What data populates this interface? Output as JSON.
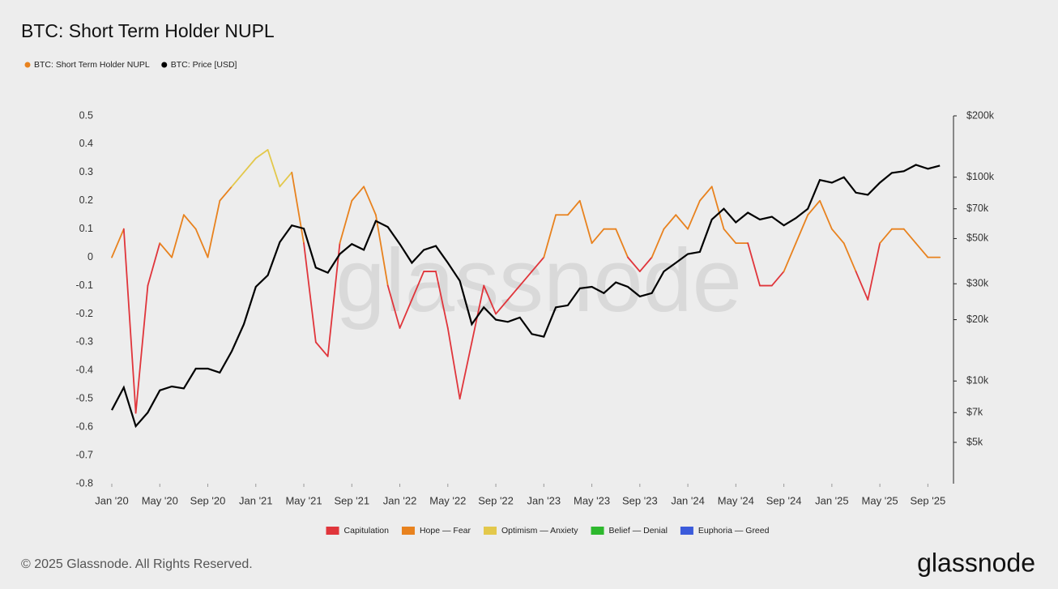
{
  "chart_data": {
    "type": "line",
    "title": "BTC: Short Term Holder NUPL",
    "watermark": "glassnode",
    "footer": "© 2025 Glassnode. All Rights Reserved.",
    "brand": "glassnode",
    "x": [
      "2020-01",
      "2020-02",
      "2020-03",
      "2020-04",
      "2020-05",
      "2020-06",
      "2020-07",
      "2020-08",
      "2020-09",
      "2020-10",
      "2020-11",
      "2020-12",
      "2021-01",
      "2021-02",
      "2021-03",
      "2021-04",
      "2021-05",
      "2021-06",
      "2021-07",
      "2021-08",
      "2021-09",
      "2021-10",
      "2021-11",
      "2021-12",
      "2022-01",
      "2022-02",
      "2022-03",
      "2022-04",
      "2022-05",
      "2022-06",
      "2022-07",
      "2022-08",
      "2022-09",
      "2022-10",
      "2022-11",
      "2022-12",
      "2023-01",
      "2023-02",
      "2023-03",
      "2023-04",
      "2023-05",
      "2023-06",
      "2023-07",
      "2023-08",
      "2023-09",
      "2023-10",
      "2023-11",
      "2023-12",
      "2024-01",
      "2024-02",
      "2024-03",
      "2024-04",
      "2024-05",
      "2024-06",
      "2024-07",
      "2024-08",
      "2024-09",
      "2024-10",
      "2024-11",
      "2024-12",
      "2025-01",
      "2025-02",
      "2025-03",
      "2025-04",
      "2025-05",
      "2025-06",
      "2025-07",
      "2025-08",
      "2025-09",
      "2025-10"
    ],
    "series": [
      {
        "name": "BTC: Short Term Holder NUPL",
        "color": "#e8821e",
        "axis": "y",
        "values": [
          0.0,
          0.1,
          -0.55,
          -0.1,
          0.05,
          0.0,
          0.15,
          0.1,
          0.0,
          0.2,
          0.25,
          0.3,
          0.35,
          0.38,
          0.25,
          0.3,
          0.05,
          -0.3,
          -0.35,
          0.05,
          0.2,
          0.25,
          0.15,
          -0.1,
          -0.25,
          -0.15,
          -0.05,
          -0.05,
          -0.25,
          -0.5,
          -0.3,
          -0.1,
          -0.2,
          -0.15,
          -0.1,
          -0.05,
          0.0,
          0.15,
          0.15,
          0.2,
          0.05,
          0.1,
          0.1,
          0.0,
          -0.05,
          0.0,
          0.1,
          0.15,
          0.1,
          0.2,
          0.25,
          0.1,
          0.05,
          0.05,
          -0.1,
          -0.1,
          -0.05,
          0.05,
          0.15,
          0.2,
          0.1,
          0.05,
          -0.05,
          -0.15,
          0.05,
          0.1,
          0.1,
          0.05,
          0.0,
          0.0
        ]
      },
      {
        "name": "BTC: Price [USD]",
        "color": "#000000",
        "axis": "y2",
        "values": [
          7200,
          9300,
          6000,
          7000,
          9000,
          9400,
          9200,
          11500,
          11500,
          11000,
          14000,
          19000,
          29000,
          33000,
          48000,
          58000,
          56000,
          36000,
          34000,
          42000,
          47000,
          44000,
          61000,
          57000,
          47000,
          38000,
          44000,
          46000,
          38000,
          31000,
          19000,
          23000,
          20000,
          19500,
          20500,
          17000,
          16500,
          23000,
          23500,
          28500,
          29000,
          27000,
          30500,
          29000,
          26000,
          27000,
          34500,
          38000,
          42000,
          43000,
          62000,
          70000,
          60000,
          67000,
          62000,
          64000,
          58000,
          63000,
          70000,
          97000,
          94000,
          100000,
          84000,
          82000,
          94000,
          105000,
          107000,
          115000,
          110000,
          114000
        ]
      }
    ],
    "zones": [
      {
        "name": "Capitulation",
        "color": "#e0353b",
        "max": 0
      },
      {
        "name": "Hope — Fear",
        "color": "#e8821e",
        "max": 0.25
      },
      {
        "name": "Optimism — Anxiety",
        "color": "#e3c84b",
        "max": 0.5
      },
      {
        "name": "Belief — Denial",
        "color": "#2db82d",
        "max": 0.75
      },
      {
        "name": "Euphoria — Greed",
        "color": "#3b5bdb",
        "max": null
      }
    ],
    "xlim": [
      "2020-01",
      "2025-11"
    ],
    "xticks": [
      {
        "value": "2020-01",
        "label": "Jan '20"
      },
      {
        "value": "2020-05",
        "label": "May '20"
      },
      {
        "value": "2020-09",
        "label": "Sep '20"
      },
      {
        "value": "2021-01",
        "label": "Jan '21"
      },
      {
        "value": "2021-05",
        "label": "May '21"
      },
      {
        "value": "2021-09",
        "label": "Sep '21"
      },
      {
        "value": "2022-01",
        "label": "Jan '22"
      },
      {
        "value": "2022-05",
        "label": "May '22"
      },
      {
        "value": "2022-09",
        "label": "Sep '22"
      },
      {
        "value": "2023-01",
        "label": "Jan '23"
      },
      {
        "value": "2023-05",
        "label": "May '23"
      },
      {
        "value": "2023-09",
        "label": "Sep '23"
      },
      {
        "value": "2024-01",
        "label": "Jan '24"
      },
      {
        "value": "2024-05",
        "label": "May '24"
      },
      {
        "value": "2024-09",
        "label": "Sep '24"
      },
      {
        "value": "2025-01",
        "label": "Jan '25"
      },
      {
        "value": "2025-05",
        "label": "May '25"
      },
      {
        "value": "2025-09",
        "label": "Sep '25"
      }
    ],
    "ylim": [
      -0.8,
      0.5
    ],
    "yticks": [
      0.5,
      0.4,
      0.3,
      0.2,
      0.1,
      0,
      -0.1,
      -0.2,
      -0.3,
      -0.4,
      -0.5,
      -0.6,
      -0.7,
      -0.8
    ],
    "y2lim": [
      3135,
      200000
    ],
    "y2log": true,
    "y2ticks": [
      {
        "value": 200000,
        "label": "$200k"
      },
      {
        "value": 100000,
        "label": "$100k"
      },
      {
        "value": 70000,
        "label": "$70k"
      },
      {
        "value": 50000,
        "label": "$50k"
      },
      {
        "value": 30000,
        "label": "$30k"
      },
      {
        "value": 20000,
        "label": "$20k"
      },
      {
        "value": 10000,
        "label": "$10k"
      },
      {
        "value": 7000,
        "label": "$7k"
      },
      {
        "value": 5000,
        "label": "$5k"
      }
    ],
    "grid": false
  }
}
